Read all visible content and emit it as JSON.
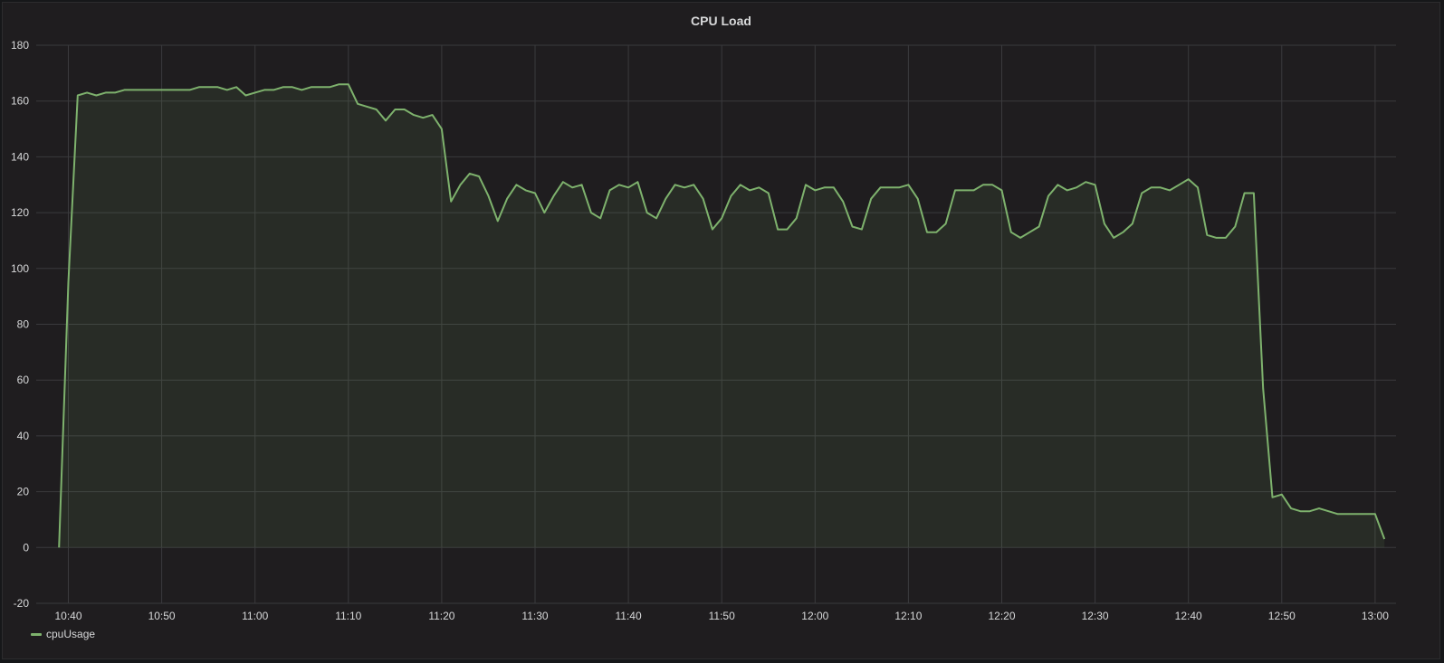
{
  "panel": {
    "title": "CPU Load"
  },
  "colors": {
    "series": "#7eb26d",
    "fill": "rgba(126,178,109,0.10)",
    "grid": "#3a3a3d",
    "text": "#d8d9da",
    "background": "#1f1d1f"
  },
  "chart_data": {
    "type": "area",
    "title": "CPU Load",
    "xlabel": "",
    "ylabel": "",
    "x_unit": "minutes since 10:40 (ticks labelled by clock time)",
    "ylim": [
      -20,
      180
    ],
    "y_ticks": [
      -20,
      0,
      20,
      40,
      60,
      80,
      100,
      120,
      140,
      160,
      180
    ],
    "x_ticks": [
      {
        "t": 0,
        "label": "10:40"
      },
      {
        "t": 10,
        "label": "10:50"
      },
      {
        "t": 20,
        "label": "11:00"
      },
      {
        "t": 30,
        "label": "11:10"
      },
      {
        "t": 40,
        "label": "11:20"
      },
      {
        "t": 50,
        "label": "11:30"
      },
      {
        "t": 60,
        "label": "11:40"
      },
      {
        "t": 70,
        "label": "11:50"
      },
      {
        "t": 80,
        "label": "12:00"
      },
      {
        "t": 90,
        "label": "12:10"
      },
      {
        "t": 100,
        "label": "12:20"
      },
      {
        "t": 110,
        "label": "12:30"
      },
      {
        "t": 120,
        "label": "12:40"
      },
      {
        "t": 130,
        "label": "12:50"
      },
      {
        "t": 140,
        "label": "13:00"
      }
    ],
    "grid": true,
    "legend_position": "bottom-left",
    "series": [
      {
        "name": "cpuUsage",
        "x": [
          -1,
          0,
          1,
          2,
          3,
          4,
          5,
          6,
          7,
          8,
          9,
          10,
          11,
          12,
          13,
          14,
          15,
          16,
          17,
          18,
          19,
          20,
          21,
          22,
          23,
          24,
          25,
          26,
          27,
          28,
          29,
          30,
          31,
          32,
          33,
          34,
          35,
          36,
          37,
          38,
          39,
          40,
          41,
          42,
          43,
          44,
          45,
          46,
          47,
          48,
          49,
          50,
          51,
          52,
          53,
          54,
          55,
          56,
          57,
          58,
          59,
          60,
          61,
          62,
          63,
          64,
          65,
          66,
          67,
          68,
          69,
          70,
          71,
          72,
          73,
          74,
          75,
          76,
          77,
          78,
          79,
          80,
          81,
          82,
          83,
          84,
          85,
          86,
          87,
          88,
          89,
          90,
          91,
          92,
          93,
          94,
          95,
          96,
          97,
          98,
          99,
          100,
          101,
          102,
          103,
          104,
          105,
          106,
          107,
          108,
          109,
          110,
          111,
          112,
          113,
          114,
          115,
          116,
          117,
          118,
          119,
          120,
          121,
          122,
          123,
          124,
          125,
          126,
          127,
          128,
          129,
          130,
          131,
          132,
          133,
          134,
          135,
          136,
          137,
          138,
          139,
          140,
          141
        ],
        "values": [
          0,
          95,
          162,
          163,
          162,
          163,
          163,
          164,
          164,
          164,
          164,
          164,
          164,
          164,
          164,
          165,
          165,
          165,
          164,
          165,
          162,
          163,
          164,
          164,
          165,
          165,
          164,
          165,
          165,
          165,
          166,
          166,
          159,
          158,
          157,
          153,
          157,
          157,
          155,
          154,
          155,
          150,
          124,
          130,
          134,
          133,
          126,
          117,
          125,
          130,
          128,
          127,
          120,
          126,
          131,
          129,
          130,
          120,
          118,
          128,
          130,
          129,
          131,
          120,
          118,
          125,
          130,
          129,
          130,
          125,
          114,
          118,
          126,
          130,
          128,
          129,
          127,
          114,
          114,
          118,
          130,
          128,
          129,
          129,
          124,
          115,
          114,
          125,
          129,
          129,
          129,
          130,
          125,
          113,
          113,
          116,
          128,
          128,
          128,
          130,
          130,
          128,
          113,
          111,
          113,
          115,
          126,
          130,
          128,
          129,
          131,
          130,
          116,
          111,
          113,
          116,
          127,
          129,
          129,
          128,
          130,
          132,
          129,
          112,
          111,
          111,
          115,
          127,
          127,
          57,
          18,
          19,
          14,
          13,
          13,
          14,
          13,
          12,
          12,
          12,
          12,
          12,
          3
        ]
      }
    ]
  },
  "legend": {
    "label": "cpuUsage"
  }
}
